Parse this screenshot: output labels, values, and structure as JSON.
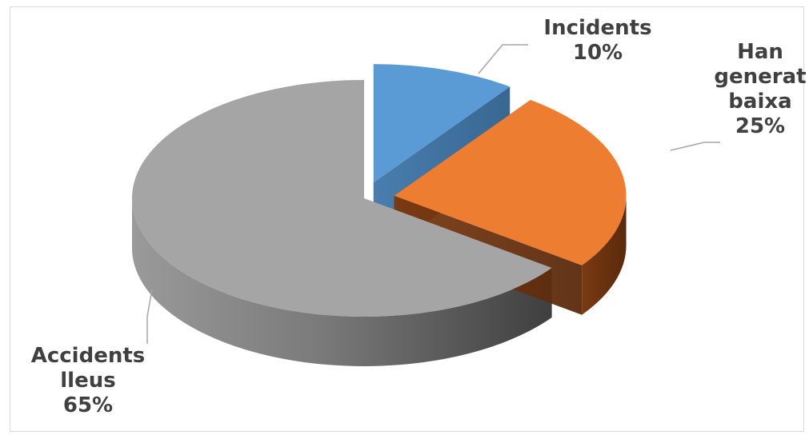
{
  "chart_data": {
    "type": "pie",
    "style": "3d-exploded",
    "slices": [
      {
        "label": [
          "Incidents"
        ],
        "value": 10,
        "percent_label": "10%",
        "color": "#5b9bd5"
      },
      {
        "label": [
          "Han",
          "generat",
          "baixa"
        ],
        "value": 25,
        "percent_label": "25%",
        "color": "#ed7d31"
      },
      {
        "label": [
          "Accidents",
          "lleus"
        ],
        "value": 65,
        "percent_label": "65%",
        "color": "#a5a5a5"
      }
    ],
    "title": "",
    "legend": "none",
    "data_labels": "outside-with-leader-lines"
  }
}
